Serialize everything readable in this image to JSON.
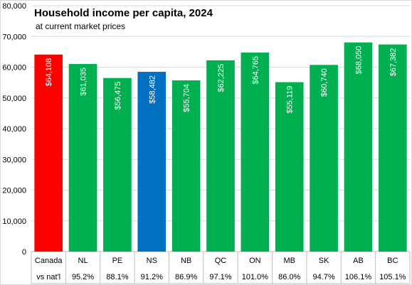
{
  "chart_data": {
    "type": "bar",
    "title": "Household income per capita, 2024",
    "subtitle": "at current market prices",
    "categories": [
      "Canada",
      "NL",
      "PE",
      "NS",
      "NB",
      "QC",
      "ON",
      "MB",
      "SK",
      "AB",
      "BC"
    ],
    "values": [
      64108,
      61035,
      56475,
      58482,
      55704,
      62225,
      64765,
      55119,
      60740,
      68050,
      67382
    ],
    "data_labels": [
      "$64,108",
      "$61,035",
      "$56,475",
      "$58,482",
      "$55,704",
      "$62,225",
      "$64,765",
      "$55,119",
      "$60,740",
      "$68,050",
      "$67,382"
    ],
    "second_row_label": "vs nat'l",
    "second_row_values": [
      "",
      "95.2%",
      "88.1%",
      "91.2%",
      "86.9%",
      "97.1%",
      "101.0%",
      "86.0%",
      "94.7%",
      "106.1%",
      "105.1%"
    ],
    "bar_colors": [
      "#ff0000",
      "#00b050",
      "#00b050",
      "#0070c0",
      "#00b050",
      "#00b050",
      "#00b050",
      "#00b050",
      "#00b050",
      "#00b050",
      "#00b050"
    ],
    "ylim": [
      0,
      80000
    ],
    "yticks": [
      0,
      10000,
      20000,
      30000,
      40000,
      50000,
      60000,
      70000,
      80000
    ],
    "ytick_labels": [
      "0",
      "10,000",
      "20,000",
      "30,000",
      "40,000",
      "50,000",
      "60,000",
      "70,000",
      "80,000"
    ],
    "grid": true,
    "legend": false
  }
}
